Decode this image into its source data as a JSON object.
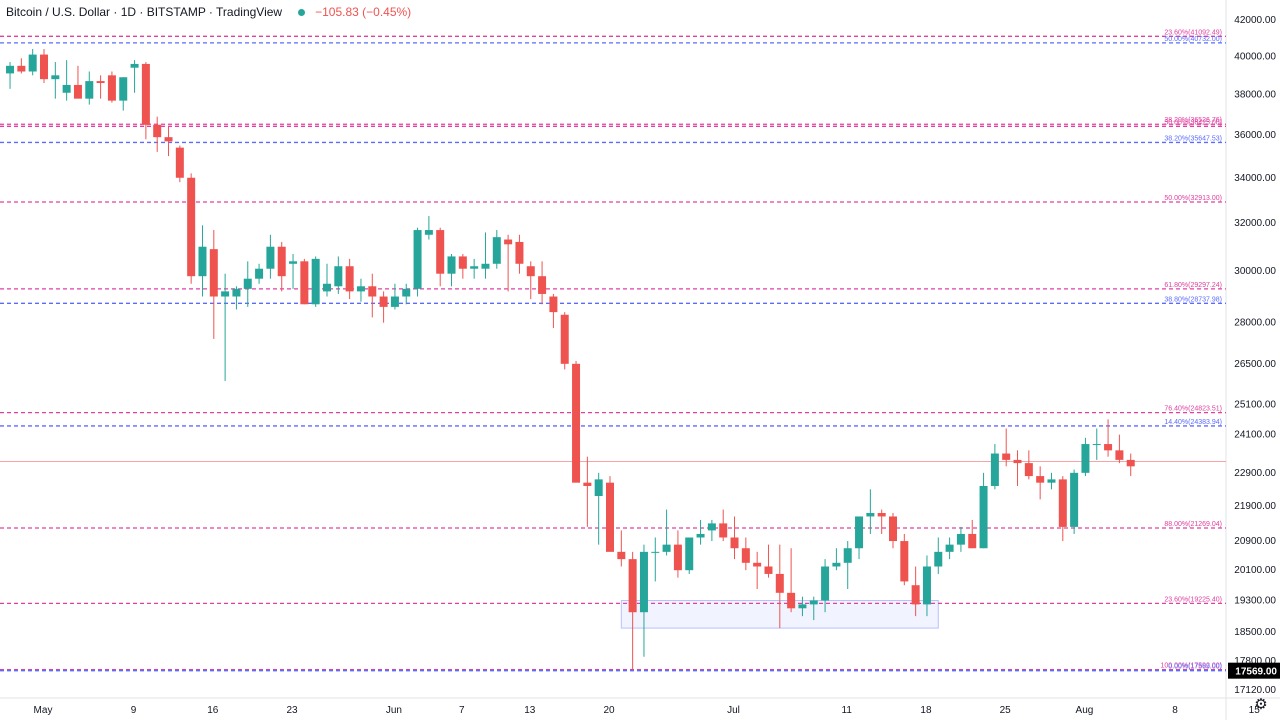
{
  "header": {
    "title": "Bitcoin / U.S. Dollar · 1D · BITSTAMP · TradingView",
    "change": "−105.83 (−0.45%)"
  },
  "icons": {
    "status_dot": "status-dot-icon",
    "settings": "gear-icon"
  },
  "colors": {
    "up": "#26a69a",
    "down": "#ef5350",
    "pink_level": "#e040a0",
    "blue_level": "#5c6bff",
    "last_price_bg": "#000000"
  },
  "chart_data": {
    "type": "candlestick",
    "symbol": "Bitcoin / U.S. Dollar",
    "timeframe": "1D",
    "exchange": "BITSTAMP",
    "ylim": [
      17000,
      42000
    ],
    "y_scale": "log",
    "y_ticks": [
      "42000.00",
      "40000.00",
      "38000.00",
      "36000.00",
      "34000.00",
      "32000.00",
      "30000.00",
      "28000.00",
      "26500.00",
      "25100.00",
      "24100.00",
      "22900.00",
      "21900.00",
      "20900.00",
      "20100.00",
      "19300.00",
      "18500.00",
      "17800.00",
      "17120.00"
    ],
    "y_tick_values": [
      42000,
      40000,
      38000,
      36000,
      34000,
      32000,
      30000,
      28000,
      26500,
      25100,
      24100,
      22900,
      21900,
      20900,
      20100,
      19300,
      18500,
      17800,
      17120
    ],
    "x_tick_labels": [
      "May",
      "9",
      "16",
      "23",
      "Jun",
      "7",
      "13",
      "20",
      "Jul",
      "11",
      "18",
      "25",
      "Aug",
      "8",
      "15"
    ],
    "x_tick_days": [
      0,
      8,
      15,
      22,
      31,
      37,
      43,
      50,
      61,
      71,
      78,
      85,
      92,
      100,
      107
    ],
    "last_price": "17569.00",
    "last_price_value": 17569,
    "fib_levels": [
      {
        "label": "23.60%(41092.49)",
        "value": 41092.49,
        "color": "pink"
      },
      {
        "label": "50.00%(40732.00)",
        "value": 40732,
        "color": "blue"
      },
      {
        "label": "38.20%(36526.76)",
        "value": 36526.76,
        "color": "pink"
      },
      {
        "label": "50.00%(36425.00)",
        "value": 36425,
        "color": "pink"
      },
      {
        "label": "38.20%(35647.53)",
        "value": 35647.53,
        "color": "blue"
      },
      {
        "label": "50.00%(32913.00)",
        "value": 32913,
        "color": "pink"
      },
      {
        "label": "61.80%(29297.24)",
        "value": 29297.24,
        "color": "pink"
      },
      {
        "label": "38.80%(28737.98)",
        "value": 28737.98,
        "color": "blue"
      },
      {
        "label": "76.40%(24823.51)",
        "value": 24823.51,
        "color": "pink"
      },
      {
        "label": "14.40%(24383.94)",
        "value": 24383.94,
        "color": "blue"
      },
      {
        "label": "88.00%(21269.04)",
        "value": 21269.04,
        "color": "pink"
      },
      {
        "label": "23.60%(19225.40)",
        "value": 19225.4,
        "color": "pink"
      },
      {
        "label": "100.00%(17592.00)",
        "value": 17592,
        "color": "pink"
      },
      {
        "label": "0.00%(17569.00)",
        "value": 17569,
        "color": "blue"
      }
    ],
    "horizontal_line": {
      "value": 23250
    },
    "support_zone": {
      "start_day": 51,
      "end_day": 79,
      "low": 18600,
      "high": 19300
    },
    "candles": [
      [
        -3,
        39100,
        39700,
        38300,
        39500
      ],
      [
        -2,
        39500,
        39900,
        39100,
        39200
      ],
      [
        -1,
        39200,
        40400,
        39000,
        40100
      ],
      [
        0,
        40100,
        40400,
        38600,
        38800
      ],
      [
        1,
        38800,
        39700,
        37800,
        39000
      ],
      [
        2,
        38100,
        39800,
        37700,
        38500
      ],
      [
        3,
        38500,
        39500,
        37900,
        37800
      ],
      [
        4,
        37800,
        39200,
        37500,
        38700
      ],
      [
        5,
        38700,
        39000,
        37800,
        38600
      ],
      [
        6,
        39000,
        39200,
        37600,
        37700
      ],
      [
        7,
        37700,
        38900,
        37200,
        38900
      ],
      [
        8,
        39400,
        39800,
        38100,
        39600
      ],
      [
        9,
        39600,
        39700,
        35800,
        36500
      ],
      [
        10,
        36500,
        36900,
        35200,
        35900
      ],
      [
        11,
        35900,
        36400,
        35000,
        35700
      ],
      [
        12,
        35400,
        35500,
        33800,
        34000
      ],
      [
        13,
        34000,
        34200,
        29500,
        29800
      ],
      [
        14,
        29800,
        31900,
        29000,
        31000
      ],
      [
        15,
        30900,
        31700,
        27400,
        29000
      ],
      [
        16,
        29000,
        29900,
        25900,
        29200
      ],
      [
        17,
        29000,
        29400,
        28500,
        29300
      ],
      [
        18,
        29300,
        30400,
        28600,
        29700
      ],
      [
        19,
        29700,
        30300,
        29500,
        30100
      ],
      [
        20,
        30100,
        31500,
        29700,
        31000
      ],
      [
        21,
        31000,
        31200,
        29200,
        29800
      ],
      [
        22,
        30300,
        30700,
        29300,
        30400
      ],
      [
        23,
        30400,
        30500,
        28700,
        28700
      ],
      [
        24,
        28700,
        30600,
        28600,
        30500
      ],
      [
        25,
        29200,
        30300,
        29000,
        29500
      ],
      [
        26,
        29400,
        30600,
        29100,
        30200
      ],
      [
        27,
        30200,
        30500,
        28900,
        29200
      ],
      [
        28,
        29200,
        29700,
        28800,
        29400
      ],
      [
        29,
        29400,
        29900,
        28200,
        29000
      ],
      [
        30,
        29000,
        29200,
        28000,
        28600
      ],
      [
        31,
        28600,
        29500,
        28500,
        29000
      ],
      [
        32,
        29000,
        29500,
        28700,
        29300
      ],
      [
        33,
        29300,
        31800,
        29000,
        31700
      ],
      [
        34,
        31500,
        32300,
        31300,
        31700
      ],
      [
        35,
        31700,
        31800,
        29400,
        29900
      ],
      [
        36,
        29900,
        30700,
        29400,
        30600
      ],
      [
        37,
        30600,
        30700,
        29700,
        30100
      ],
      [
        38,
        30100,
        30500,
        29700,
        30200
      ],
      [
        39,
        30100,
        31600,
        29700,
        30300
      ],
      [
        40,
        30300,
        31700,
        30100,
        31400
      ],
      [
        41,
        31300,
        31500,
        29200,
        31100
      ],
      [
        42,
        31200,
        31500,
        29900,
        30300
      ],
      [
        43,
        30200,
        30400,
        28900,
        29800
      ],
      [
        44,
        29800,
        30400,
        28700,
        29100
      ],
      [
        45,
        29000,
        29100,
        27800,
        28400
      ],
      [
        46,
        28300,
        28400,
        26300,
        26500
      ],
      [
        47,
        26500,
        26600,
        22700,
        22600
      ],
      [
        48,
        22600,
        23400,
        21300,
        22500
      ],
      [
        49,
        22200,
        22900,
        20800,
        22700
      ],
      [
        50,
        22600,
        22800,
        20700,
        20600
      ],
      [
        51,
        20600,
        21200,
        20200,
        20400
      ],
      [
        52,
        20400,
        20600,
        17600,
        19000
      ],
      [
        53,
        19000,
        20800,
        17900,
        20600
      ],
      [
        54,
        20600,
        21000,
        19800,
        20600
      ],
      [
        55,
        20600,
        21800,
        20500,
        20800
      ],
      [
        56,
        20800,
        21200,
        19900,
        20100
      ],
      [
        57,
        20100,
        21000,
        20000,
        21000
      ],
      [
        58,
        21000,
        21500,
        20800,
        21100
      ],
      [
        59,
        21200,
        21500,
        20900,
        21400
      ],
      [
        60,
        21400,
        21800,
        20900,
        21000
      ],
      [
        61,
        21000,
        21600,
        20400,
        20700
      ],
      [
        62,
        20700,
        21000,
        20100,
        20300
      ],
      [
        63,
        20300,
        20600,
        19600,
        20200
      ],
      [
        64,
        20200,
        20800,
        19900,
        20000
      ],
      [
        65,
        20000,
        20800,
        18600,
        19500
      ],
      [
        66,
        19500,
        20700,
        19000,
        19100
      ],
      [
        67,
        19100,
        19400,
        18900,
        19200
      ],
      [
        68,
        19200,
        19400,
        18800,
        19300
      ],
      [
        69,
        19300,
        20400,
        19000,
        20200
      ],
      [
        70,
        20200,
        20700,
        20100,
        20300
      ],
      [
        71,
        20300,
        20900,
        19600,
        20700
      ],
      [
        72,
        20700,
        21500,
        20400,
        21600
      ],
      [
        73,
        21600,
        22400,
        21100,
        21700
      ],
      [
        74,
        21700,
        21800,
        21100,
        21600
      ],
      [
        75,
        21600,
        21700,
        20700,
        20900
      ],
      [
        76,
        20900,
        21100,
        19700,
        19800
      ],
      [
        77,
        19700,
        20200,
        18900,
        19200
      ],
      [
        78,
        19200,
        20500,
        18900,
        20200
      ],
      [
        79,
        20200,
        21000,
        20000,
        20600
      ],
      [
        80,
        20600,
        21000,
        20400,
        20800
      ],
      [
        81,
        20800,
        21300,
        20600,
        21100
      ],
      [
        82,
        21100,
        21500,
        20700,
        20700
      ],
      [
        83,
        20700,
        22900,
        20700,
        22500
      ],
      [
        84,
        22500,
        23800,
        22400,
        23500
      ],
      [
        85,
        23500,
        24300,
        23100,
        23300
      ],
      [
        86,
        23300,
        23600,
        22500,
        23200
      ],
      [
        87,
        23200,
        23600,
        22700,
        22800
      ],
      [
        88,
        22800,
        23100,
        22100,
        22600
      ],
      [
        89,
        22600,
        22900,
        22400,
        22700
      ],
      [
        90,
        22700,
        22800,
        20900,
        21300
      ],
      [
        91,
        21300,
        23000,
        21100,
        22900
      ],
      [
        92,
        22900,
        24000,
        22800,
        23800
      ],
      [
        93,
        23800,
        24300,
        23300,
        23800
      ],
      [
        94,
        23800,
        24600,
        23400,
        23600
      ],
      [
        95,
        23600,
        24100,
        23200,
        23300
      ],
      [
        96,
        23300,
        23500,
        22800,
        23100
      ]
    ]
  }
}
